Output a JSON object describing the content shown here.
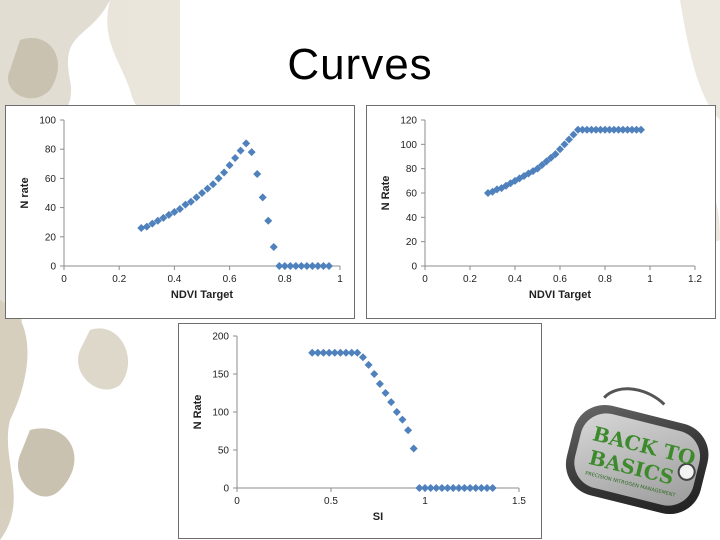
{
  "slide": {
    "title": "Curves"
  },
  "logo": {
    "line1": "BACK TO",
    "line2": "BASICS",
    "tagline": "PRECISION NITROGEN MANAGEMENT"
  },
  "colors": {
    "marker": "#4f81bd",
    "axis": "#8c8c8c",
    "camo_light": "#d9d2c3",
    "camo_dark": "#b9ae98",
    "tag_green": "#3d8a2c"
  },
  "chart_data": [
    {
      "type": "scatter",
      "xlabel": "NDVI Target",
      "ylabel": "N rate",
      "xlim": [
        0,
        1
      ],
      "ylim": [
        0,
        100
      ],
      "xticks": [
        "0",
        "0.2",
        "0.4",
        "0.6",
        "0.8",
        "1"
      ],
      "yticks": [
        "0",
        "20",
        "40",
        "60",
        "80",
        "100"
      ],
      "grid": false,
      "x": [
        0.28,
        0.3,
        0.32,
        0.34,
        0.36,
        0.38,
        0.4,
        0.42,
        0.44,
        0.46,
        0.48,
        0.5,
        0.52,
        0.54,
        0.56,
        0.58,
        0.6,
        0.62,
        0.64,
        0.66,
        0.68,
        0.7,
        0.72,
        0.74,
        0.76,
        0.78,
        0.8,
        0.82,
        0.84,
        0.86,
        0.88,
        0.9,
        0.92,
        0.94,
        0.96
      ],
      "y": [
        26,
        27,
        29,
        31,
        33,
        35,
        37,
        39,
        42,
        44,
        47,
        50,
        53,
        56,
        60,
        64,
        69,
        74,
        79,
        84,
        78,
        63,
        47,
        31,
        13,
        0,
        0,
        0,
        0,
        0,
        0,
        0,
        0,
        0,
        0
      ]
    },
    {
      "type": "scatter",
      "xlabel": "NDVI Target",
      "ylabel": "N Rate",
      "xlim": [
        0,
        1.2
      ],
      "ylim": [
        0,
        120
      ],
      "xticks": [
        "0",
        "0.2",
        "0.4",
        "0.6",
        "0.8",
        "1",
        "1.2"
      ],
      "yticks": [
        "0",
        "20",
        "40",
        "60",
        "80",
        "100",
        "120"
      ],
      "grid": false,
      "x": [
        0.28,
        0.3,
        0.32,
        0.34,
        0.36,
        0.38,
        0.4,
        0.42,
        0.44,
        0.46,
        0.48,
        0.5,
        0.52,
        0.54,
        0.56,
        0.58,
        0.6,
        0.62,
        0.64,
        0.66,
        0.68,
        0.7,
        0.72,
        0.74,
        0.76,
        0.78,
        0.8,
        0.82,
        0.84,
        0.86,
        0.88,
        0.9,
        0.92,
        0.94,
        0.96
      ],
      "y": [
        60,
        61,
        63,
        64,
        66,
        68,
        70,
        72,
        74,
        76,
        78,
        80,
        83,
        86,
        89,
        92,
        96,
        100,
        104,
        108,
        112,
        112,
        112,
        112,
        112,
        112,
        112,
        112,
        112,
        112,
        112,
        112,
        112,
        112,
        112
      ]
    },
    {
      "type": "scatter",
      "xlabel": "SI",
      "ylabel": "N Rate",
      "xlim": [
        0,
        1.5
      ],
      "ylim": [
        0,
        200
      ],
      "xticks": [
        "0",
        "0.5",
        "1",
        "1.5"
      ],
      "yticks": [
        "0",
        "50",
        "100",
        "150",
        "200"
      ],
      "grid": false,
      "x": [
        0.4,
        0.43,
        0.46,
        0.49,
        0.52,
        0.55,
        0.58,
        0.61,
        0.64,
        0.67,
        0.7,
        0.73,
        0.76,
        0.79,
        0.82,
        0.85,
        0.88,
        0.91,
        0.94,
        0.97,
        1.0,
        1.03,
        1.06,
        1.09,
        1.12,
        1.15,
        1.18,
        1.21,
        1.24,
        1.27,
        1.3,
        1.33,
        1.36
      ],
      "y": [
        178,
        178,
        178,
        178,
        178,
        178,
        178,
        178,
        178,
        172,
        162,
        150,
        137,
        125,
        113,
        100,
        90,
        76,
        52,
        0,
        0,
        0,
        0,
        0,
        0,
        0,
        0,
        0,
        0,
        0,
        0,
        0,
        0
      ]
    }
  ]
}
